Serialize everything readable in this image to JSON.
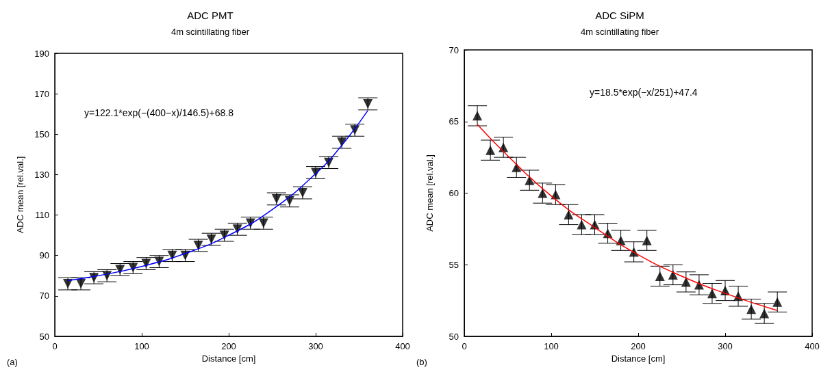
{
  "chart_data": [
    {
      "type": "scatter",
      "title": "ADC PMT",
      "subtitle": "4m scintillating fiber",
      "xlabel": "Distance [cm]",
      "ylabel": "ADC mean [rel.val.]",
      "annotations": [
        "(a)",
        "y=122.1*exp(−(400−x)/146.5)+68.8"
      ],
      "xlim": [
        0,
        400
      ],
      "xticks": [
        0,
        100,
        200,
        300,
        400
      ],
      "ylim": [
        50,
        190
      ],
      "yticks": [
        50,
        70,
        90,
        110,
        130,
        150,
        170,
        190
      ],
      "grid": false,
      "series": [
        {
          "marker": "triangle-down",
          "color": "#000000",
          "x": [
            15,
            30,
            45,
            60,
            75,
            90,
            105,
            120,
            135,
            150,
            165,
            180,
            195,
            210,
            225,
            240,
            255,
            270,
            285,
            300,
            315,
            330,
            345,
            360
          ],
          "values": [
            76,
            76,
            79,
            80,
            83,
            84,
            86,
            87,
            90,
            90,
            95,
            98,
            100,
            103,
            106,
            106,
            118,
            117,
            121,
            131,
            136,
            146,
            152,
            165
          ],
          "errors": [
            3,
            3,
            3,
            3,
            3,
            3,
            3,
            3,
            3,
            3,
            3,
            3,
            3,
            3,
            3,
            3,
            3,
            3,
            3,
            3,
            3,
            3,
            3,
            3
          ]
        },
        {
          "type": "line",
          "marker": "none",
          "color": "#0000ff",
          "x": [
            15,
            50,
            100,
            150,
            200,
            250,
            300,
            330,
            360
          ],
          "values": [
            77.6,
            80.0,
            84.6,
            91.0,
            100.0,
            112.7,
            130.5,
            144.5,
            161.7
          ]
        }
      ]
    },
    {
      "type": "scatter",
      "title": "ADC SiPM",
      "subtitle": "4m scintillating fiber",
      "xlabel": "Distance [cm]",
      "ylabel": "ADC mean [rel.val.]",
      "annotations": [
        "(b)",
        "y=18.5*exp(−x/251)+47.4"
      ],
      "xlim": [
        0,
        400
      ],
      "xticks": [
        0,
        100,
        200,
        300,
        400
      ],
      "ylim": [
        50,
        70
      ],
      "yticks": [
        50,
        55,
        60,
        65,
        70
      ],
      "grid": false,
      "series": [
        {
          "marker": "triangle",
          "color": "#000000",
          "x": [
            15,
            30,
            45,
            60,
            75,
            90,
            105,
            120,
            135,
            150,
            165,
            180,
            195,
            210,
            225,
            240,
            255,
            270,
            285,
            300,
            315,
            330,
            345,
            360
          ],
          "values": [
            65.4,
            63.0,
            63.2,
            61.8,
            60.9,
            60.0,
            59.9,
            58.5,
            57.8,
            57.8,
            57.2,
            56.7,
            55.9,
            56.7,
            54.2,
            54.3,
            53.8,
            53.6,
            53.0,
            53.2,
            52.8,
            51.9,
            51.6,
            52.4
          ],
          "errors": [
            0.7,
            0.7,
            0.7,
            0.7,
            0.7,
            0.7,
            0.7,
            0.7,
            0.7,
            0.7,
            0.7,
            0.7,
            0.7,
            0.7,
            0.7,
            0.7,
            0.7,
            0.7,
            0.7,
            0.7,
            0.7,
            0.7,
            0.7,
            0.7
          ]
        },
        {
          "type": "line",
          "marker": "none",
          "color": "#ff0000",
          "x": [
            15,
            50,
            100,
            150,
            200,
            250,
            300,
            360
          ],
          "values": [
            64.8,
            62.6,
            59.8,
            57.6,
            55.7,
            54.2,
            53.0,
            51.8
          ]
        }
      ]
    }
  ]
}
